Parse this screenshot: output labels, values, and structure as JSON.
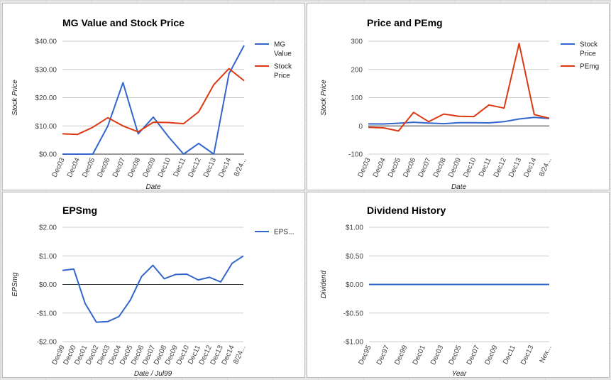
{
  "colors": {
    "blue": "#3366cc",
    "red": "#dc3912",
    "grid": "#cccccc",
    "zero": "#333333"
  },
  "chart_data": [
    {
      "type": "line",
      "title": "MG Value and Stock Price",
      "xlabel": "Date",
      "ylabel": "Stock Price",
      "categories": [
        "Dec03",
        "Dec04",
        "Dec05",
        "Dec06",
        "Dec07",
        "Dec08",
        "Dec09",
        "Dec10",
        "Dec11",
        "Dec12",
        "Dec13",
        "Dec14",
        "8/24..."
      ],
      "ylim": [
        0,
        40
      ],
      "yticks": [
        0,
        10,
        20,
        30,
        40
      ],
      "ytick_labels": [
        "$0.00",
        "$10.00",
        "$20.00",
        "$30.00",
        "$40.00"
      ],
      "legend_position": "right",
      "series": [
        {
          "name": "MG Value",
          "legend_lines": [
            "MG",
            "Value"
          ],
          "color": "#3366cc",
          "values": [
            0,
            0,
            0,
            10,
            25.3,
            7.2,
            13.1,
            6.2,
            0,
            3.8,
            0,
            28.5,
            38.5
          ]
        },
        {
          "name": "Stock Price",
          "legend_lines": [
            "Stock",
            "Price"
          ],
          "color": "#dc3912",
          "values": [
            7.2,
            7.0,
            9.5,
            12.9,
            10.0,
            7.9,
            11.3,
            11.2,
            10.8,
            15.0,
            24.6,
            30.3,
            26.0
          ]
        }
      ]
    },
    {
      "type": "line",
      "title": "Price and PEmg",
      "xlabel": "Date",
      "ylabel": "Stock Price",
      "categories": [
        "Dec03",
        "Dec04",
        "Dec05",
        "Dec06",
        "Dec07",
        "Dec08",
        "Dec09",
        "Dec10",
        "Dec11",
        "Dec12",
        "Dec13",
        "Dec14",
        "8/24..."
      ],
      "ylim": [
        -100,
        300
      ],
      "yticks": [
        -100,
        0,
        100,
        200,
        300
      ],
      "ytick_labels": [
        "-100",
        "0",
        "100",
        "200",
        "300"
      ],
      "legend_position": "right",
      "series": [
        {
          "name": "Stock Price",
          "legend_lines": [
            "Stock",
            "Price"
          ],
          "color": "#3366cc",
          "values": [
            7.2,
            7.0,
            9.5,
            12.9,
            10.0,
            7.9,
            11.3,
            11.2,
            10.8,
            15.0,
            24.6,
            30.3,
            26.0
          ]
        },
        {
          "name": "PEmg",
          "legend_lines": [
            "PEmg"
          ],
          "color": "#dc3912",
          "values": [
            -5,
            -7,
            -18,
            48,
            15,
            42,
            34,
            33,
            74,
            63,
            292,
            40,
            27
          ]
        }
      ]
    },
    {
      "type": "line",
      "title": "EPSmg",
      "xlabel": "Date / Jul99",
      "ylabel": "EPSmg",
      "categories": [
        "Dec99",
        "Dec00",
        "Dec01",
        "Dec02",
        "Dec03",
        "Dec04",
        "Dec05",
        "Dec06",
        "Dec07",
        "Dec08",
        "Dec09",
        "Dec10",
        "Dec11",
        "Dec12",
        "Dec13",
        "Dec14",
        "8/24..."
      ],
      "ylim": [
        -2,
        2
      ],
      "yticks": [
        -2,
        -1,
        0,
        1,
        2
      ],
      "ytick_labels": [
        "-$2.00",
        "-$1.00",
        "$0.00",
        "$1.00",
        "$2.00"
      ],
      "legend_position": "right",
      "series": [
        {
          "name": "EPS...",
          "legend_lines": [
            "EPS..."
          ],
          "color": "#3366cc",
          "values": [
            0.49,
            0.54,
            -0.66,
            -1.32,
            -1.3,
            -1.12,
            -0.55,
            0.28,
            0.67,
            0.2,
            0.35,
            0.36,
            0.16,
            0.25,
            0.09,
            0.74,
            1.0
          ]
        }
      ]
    },
    {
      "type": "line",
      "title": "Dividend History",
      "xlabel": "Year",
      "ylabel": "Dividend",
      "categories": [
        "Dec95",
        "Dec97",
        "Dec99",
        "Dec01",
        "Dec03",
        "Dec05",
        "Dec07",
        "Dec09",
        "Dec11",
        "Dec13",
        "Nex..."
      ],
      "ylim": [
        -1,
        1
      ],
      "yticks": [
        -1,
        -0.5,
        0,
        0.5,
        1
      ],
      "ytick_labels": [
        "-$1.00",
        "-$0.50",
        "$0.00",
        "$0.50",
        "$1.00"
      ],
      "legend_position": "none",
      "series": [
        {
          "color": "#3366cc",
          "values": [
            0,
            0,
            0,
            0,
            0,
            0,
            0,
            0,
            0,
            0,
            0
          ]
        }
      ]
    }
  ]
}
